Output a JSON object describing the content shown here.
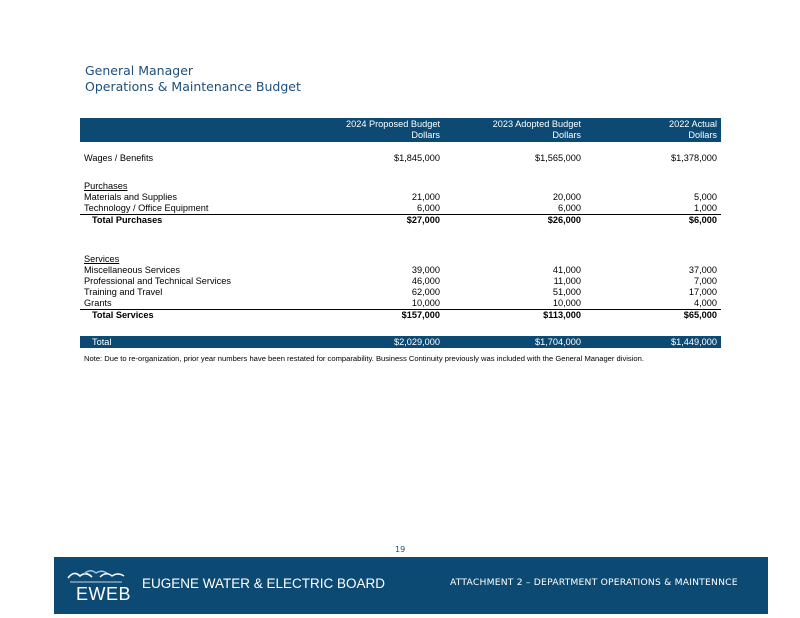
{
  "title": {
    "line1": "General Manager",
    "line2": "Operations & Maintenance Budget"
  },
  "table": {
    "headers": [
      {
        "line1": "2024 Proposed Budget",
        "line2": "Dollars"
      },
      {
        "line1": "2023 Adopted Budget",
        "line2": "Dollars"
      },
      {
        "line1": "2022 Actual",
        "line2": "Dollars"
      }
    ],
    "wages": {
      "label": "Wages / Benefits",
      "values": [
        "$1,845,000",
        "$1,565,000",
        "$1,378,000"
      ]
    },
    "purchases": {
      "heading": "Purchases",
      "rows": [
        {
          "label": "Materials and Supplies",
          "values": [
            "21,000",
            "20,000",
            "5,000"
          ]
        },
        {
          "label": "Technology / Office Equipment",
          "values": [
            "6,000",
            "6,000",
            "1,000"
          ]
        }
      ],
      "total": {
        "label": "Total Purchases",
        "values": [
          "$27,000",
          "$26,000",
          "$6,000"
        ]
      }
    },
    "services": {
      "heading": "Services",
      "rows": [
        {
          "label": "Miscellaneous Services",
          "values": [
            "39,000",
            "41,000",
            "37,000"
          ]
        },
        {
          "label": "Professional and Technical Services",
          "values": [
            "46,000",
            "11,000",
            "7,000"
          ]
        },
        {
          "label": "Training and Travel",
          "values": [
            "62,000",
            "51,000",
            "17,000"
          ]
        },
        {
          "label": "Grants",
          "values": [
            "10,000",
            "10,000",
            "4,000"
          ]
        }
      ],
      "total": {
        "label": "Total Services",
        "values": [
          "$157,000",
          "$113,000",
          "$65,000"
        ]
      }
    },
    "grand_total": {
      "label": "Total",
      "values": [
        "$2,029,000",
        "$1,704,000",
        "$1,449,000"
      ]
    }
  },
  "note": "Note: Due to re-organization, prior year numbers have been restated for comparability. Business Continuity previously was included with the General Manager division.",
  "page_number": "19",
  "footer": {
    "logo_text": "EWEB",
    "org_name": "EUGENE WATER & ELECTRIC BOARD",
    "attachment": "ATTACHMENT 2 – DEPARTMENT OPERATIONS & MAINTENNCE"
  }
}
